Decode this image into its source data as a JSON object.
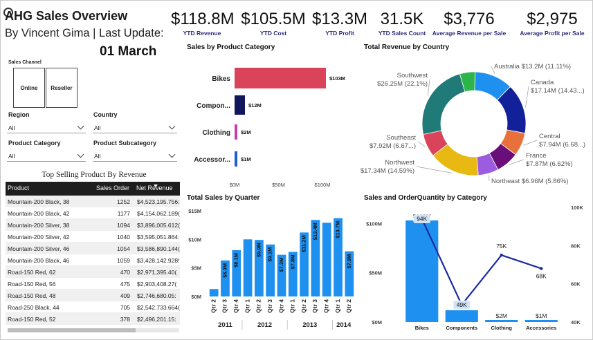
{
  "header": {
    "title": "AHG Sales Overview",
    "subtitle": "By Vincent Gima | Last Update:",
    "date": "01 March"
  },
  "kpis": [
    {
      "value": "$118.8M",
      "label": "YTD Revenue"
    },
    {
      "value": "$105.5M",
      "label": "YTD Cost"
    },
    {
      "value": "$13.3M",
      "label": "YTD Profit"
    },
    {
      "value": "31.5K",
      "label": "YTD Sales Count"
    },
    {
      "value": "$3,776",
      "label": "Average Revenue per Sale"
    },
    {
      "value": "$2,975",
      "label": "Average Profit per Sale"
    }
  ],
  "slicers": {
    "sales_channel": {
      "label": "Sales Channel",
      "options": [
        "Online",
        "Reseller"
      ]
    },
    "region": {
      "label": "Region",
      "value": "All"
    },
    "country": {
      "label": "Country",
      "value": "All"
    },
    "product_category": {
      "label": "Product Category",
      "value": "All"
    },
    "product_subcategory": {
      "label": "Product Subcategory",
      "value": "All"
    }
  },
  "table": {
    "title": "Top Selling Product By Revenue",
    "columns": [
      "Product",
      "Sales Order",
      "Net Revenue"
    ],
    "rows": [
      [
        "Mountain-200 Black, 38",
        "1252",
        "$4,523,195.756:"
      ],
      [
        "Mountain-200 Black, 42",
        "1177",
        "$4,154,062.189("
      ],
      [
        "Mountain-200 Silver, 38",
        "1094",
        "$3,896,005.612("
      ],
      [
        "Mountain-200 Silver, 42",
        "1040",
        "$3,595,051.864:"
      ],
      [
        "Mountain-200 Silver, 46",
        "1054",
        "$3,586,890.144("
      ],
      [
        "Mountain-200 Black, 46",
        "1059",
        "$3,428,142.928!"
      ],
      [
        "Road-150 Red, 62",
        "470",
        "$2,971,395.40("
      ],
      [
        "Road-150 Red, 56",
        "475",
        "$2,903,408.27("
      ],
      [
        "Road-150 Red, 48",
        "409",
        "$2,746,680.05:"
      ],
      [
        "Road-250 Black, 44",
        "705",
        "$2,542,733.664("
      ],
      [
        "Road-150 Red, 52",
        "378",
        "$2,496,201.15:"
      ]
    ]
  },
  "chart_titles": {
    "category": "Sales by Product Category",
    "country": "Total Revenue by Country",
    "quarter": "Total Sales by Quarter",
    "combo": "Sales and OrderQuantity by Category"
  },
  "chart_data": [
    {
      "type": "bar",
      "orientation": "horizontal",
      "title": "Sales by Product Category",
      "categories": [
        "Bikes",
        "Compon...",
        "Clothing",
        "Accessor..."
      ],
      "values": [
        103,
        12,
        2,
        1
      ],
      "value_labels": [
        "$103M",
        "$12M",
        "$2M",
        "$1M"
      ],
      "colors": [
        "#d9445a",
        "#12165c",
        "#c43fae",
        "#1f5bd6"
      ],
      "xticks": [
        "$0M",
        "$50M",
        "$100M"
      ],
      "xlim": [
        0,
        110
      ]
    },
    {
      "type": "pie",
      "donut": true,
      "title": "Total Revenue by Country",
      "slices": [
        {
          "name": "Australia",
          "value": 13.2,
          "label": "Australia $13.2M (11.11%)",
          "color": "#1e90f0"
        },
        {
          "name": "Canada",
          "value": 17.14,
          "label": "Canada $17.14M (14.43...)",
          "color": "#12209a"
        },
        {
          "name": "Central",
          "value": 7.94,
          "label": "Central $7.94M (6.68...)",
          "color": "#e8703a"
        },
        {
          "name": "France",
          "value": 7.87,
          "label": "France $7.87M (6.62%)",
          "color": "#6a0f7a"
        },
        {
          "name": "Northeast",
          "value": 6.96,
          "label": "Northeast $6.96M (5.86%)",
          "color": "#9b5ce0"
        },
        {
          "name": "Northwest",
          "value": 17.34,
          "label": "Northwest $17.34M (14.59%)",
          "color": "#e8b913"
        },
        {
          "name": "Southeast",
          "value": 7.92,
          "label": "Southeast $7.92M (6.67...)",
          "color": "#d9445a"
        },
        {
          "name": "Southwest",
          "value": 26.25,
          "label": "Southwest $26.25M (22.1%)",
          "color": "#1f7a78"
        },
        {
          "name": "",
          "value": 5.2,
          "label": "",
          "color": "#2bb54a"
        }
      ]
    },
    {
      "type": "bar",
      "title": "Total Sales by Quarter",
      "categories": [
        "Qtr 2",
        "Qtr 3",
        "Qtr 4",
        "Qtr 1",
        "Qtr 2",
        "Qtr 3",
        "Qtr 4",
        "Qtr 1",
        "Qtr 2",
        "Qtr 3",
        "Qtr 4",
        "Qtr 1",
        "Qtr 2"
      ],
      "years": [
        {
          "label": "2011",
          "span": 3
        },
        {
          "label": "2012",
          "span": 4
        },
        {
          "label": "2013",
          "span": 4
        },
        {
          "label": "2014",
          "span": 2
        }
      ],
      "values": [
        1.3,
        6.3,
        8.1,
        10.0,
        9.9,
        9.1,
        7.3,
        7.8,
        11.2,
        13.4,
        12.9,
        13.7,
        7.9
      ],
      "value_labels": [
        "",
        "$6.3M",
        "$8.1M",
        "",
        "$9.9M",
        "$9.1M",
        "$7.3M",
        "$7.8M",
        "$11.2M",
        "$13.4M",
        "",
        "$13.7M",
        "$7.9M"
      ],
      "color": "#1e90f0",
      "yticks": [
        "$0M",
        "$5M",
        "$10M",
        "$15M"
      ],
      "ylim": [
        0,
        15
      ]
    },
    {
      "type": "bar",
      "combo_line": true,
      "title": "Sales and OrderQuantity by Category",
      "categories": [
        "Bikes",
        "Components",
        "Clothing",
        "Accessories"
      ],
      "bar_values": [
        103,
        12,
        2,
        1
      ],
      "bar_labels": [
        "$103M",
        "$12M",
        "$2M",
        "$1M"
      ],
      "line_values": [
        94,
        49,
        75,
        68
      ],
      "line_labels": [
        "94K",
        "49K",
        "75K",
        "68K"
      ],
      "bar_color": "#1e90f0",
      "line_color": "#1a2aa0",
      "yticks_left": [
        "$0M",
        "$50M",
        "$100M"
      ],
      "ylim_left": [
        0,
        110
      ],
      "yticks_right": [
        "40K",
        "60K",
        "80K",
        "100K"
      ],
      "ylim_right": [
        40,
        100
      ]
    }
  ]
}
